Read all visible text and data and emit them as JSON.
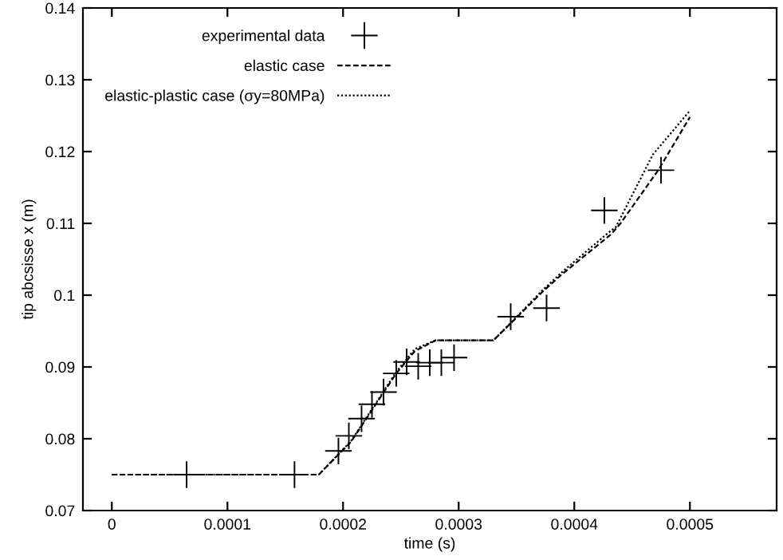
{
  "chart_data": {
    "type": "line",
    "xlabel": "time (s)",
    "ylabel": "tip abcsisse x (m)",
    "xlim": [
      -2.5e-05,
      0.000575
    ],
    "xticks": [
      0,
      0.0001,
      0.0002,
      0.0003,
      0.0004,
      0.0005
    ],
    "ylim": [
      0.07,
      0.14
    ],
    "yticks": [
      0.07,
      0.08,
      0.09,
      0.1,
      0.11,
      0.12,
      0.13,
      0.14
    ],
    "grid": false,
    "legend": "top left",
    "series": [
      {
        "name": "experimental data",
        "type": "scatter",
        "marker": "cross",
        "color": "#000000",
        "x": [
          6.47e-05,
          0.000158,
          0.000196,
          0.000205,
          0.000216,
          0.000225,
          0.000235,
          0.000246,
          0.000255,
          0.000265,
          0.000275,
          0.000285,
          0.000296,
          0.000345,
          0.000376,
          0.000426,
          0.000475
        ],
        "values": [
          0.075,
          0.075,
          0.0783,
          0.0804,
          0.0828,
          0.0848,
          0.0865,
          0.0891,
          0.0907,
          0.0901,
          0.0906,
          0.0906,
          0.0913,
          0.097,
          0.0982,
          0.1118,
          0.1174
        ]
      },
      {
        "name": "elastic case",
        "line_style": "dashed",
        "color": "#000000",
        "x": [
          0,
          0.000179,
          0.000207,
          0.000246,
          0.000262,
          0.00028,
          0.00033,
          0.000349,
          0.000372,
          0.00039,
          0.000432,
          0.00044,
          0.000473,
          0.0005
        ],
        "values": [
          0.075,
          0.075,
          0.0796,
          0.0891,
          0.0922,
          0.0937,
          0.0937,
          0.0967,
          0.1004,
          0.103,
          0.1085,
          0.11,
          0.1175,
          0.1248
        ]
      },
      {
        "name": "elastic-plastic case (σy=80MPa)",
        "line_style": "dotted",
        "color": "#000000",
        "x": [
          0,
          0.000179,
          0.000207,
          0.000246,
          0.000262,
          0.00028,
          0.00033,
          0.000349,
          0.000372,
          0.00039,
          0.000428,
          0.000436,
          0.000468,
          0.0005
        ],
        "values": [
          0.075,
          0.075,
          0.0797,
          0.0893,
          0.0925,
          0.0937,
          0.0937,
          0.0968,
          0.1006,
          0.1033,
          0.1085,
          0.1095,
          0.1196,
          0.1257
        ]
      }
    ]
  }
}
